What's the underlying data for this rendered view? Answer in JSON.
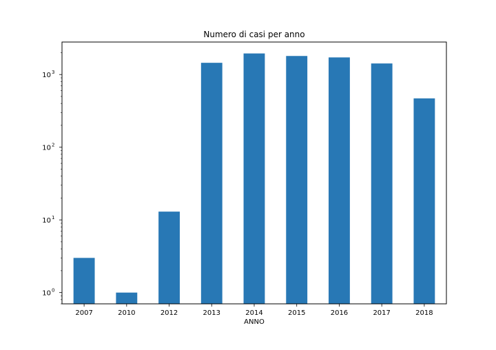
{
  "chart_data": {
    "type": "bar",
    "title": "Numero di casi per anno",
    "xlabel": "ANNO",
    "ylabel": "",
    "yscale": "log",
    "ylim": [
      0.7,
      2800
    ],
    "categories": [
      "2007",
      "2010",
      "2012",
      "2013",
      "2014",
      "2015",
      "2016",
      "2017",
      "2018"
    ],
    "values": [
      3,
      1,
      13,
      1450,
      1950,
      1800,
      1720,
      1420,
      470
    ],
    "y_ticks": [
      {
        "value": 1,
        "base": "10",
        "exp": "0"
      },
      {
        "value": 10,
        "base": "10",
        "exp": "1"
      },
      {
        "value": 100,
        "base": "10",
        "exp": "2"
      },
      {
        "value": 1000,
        "base": "10",
        "exp": "3"
      }
    ],
    "bar_color": "#2878b5",
    "grid": false,
    "legend": "none"
  }
}
